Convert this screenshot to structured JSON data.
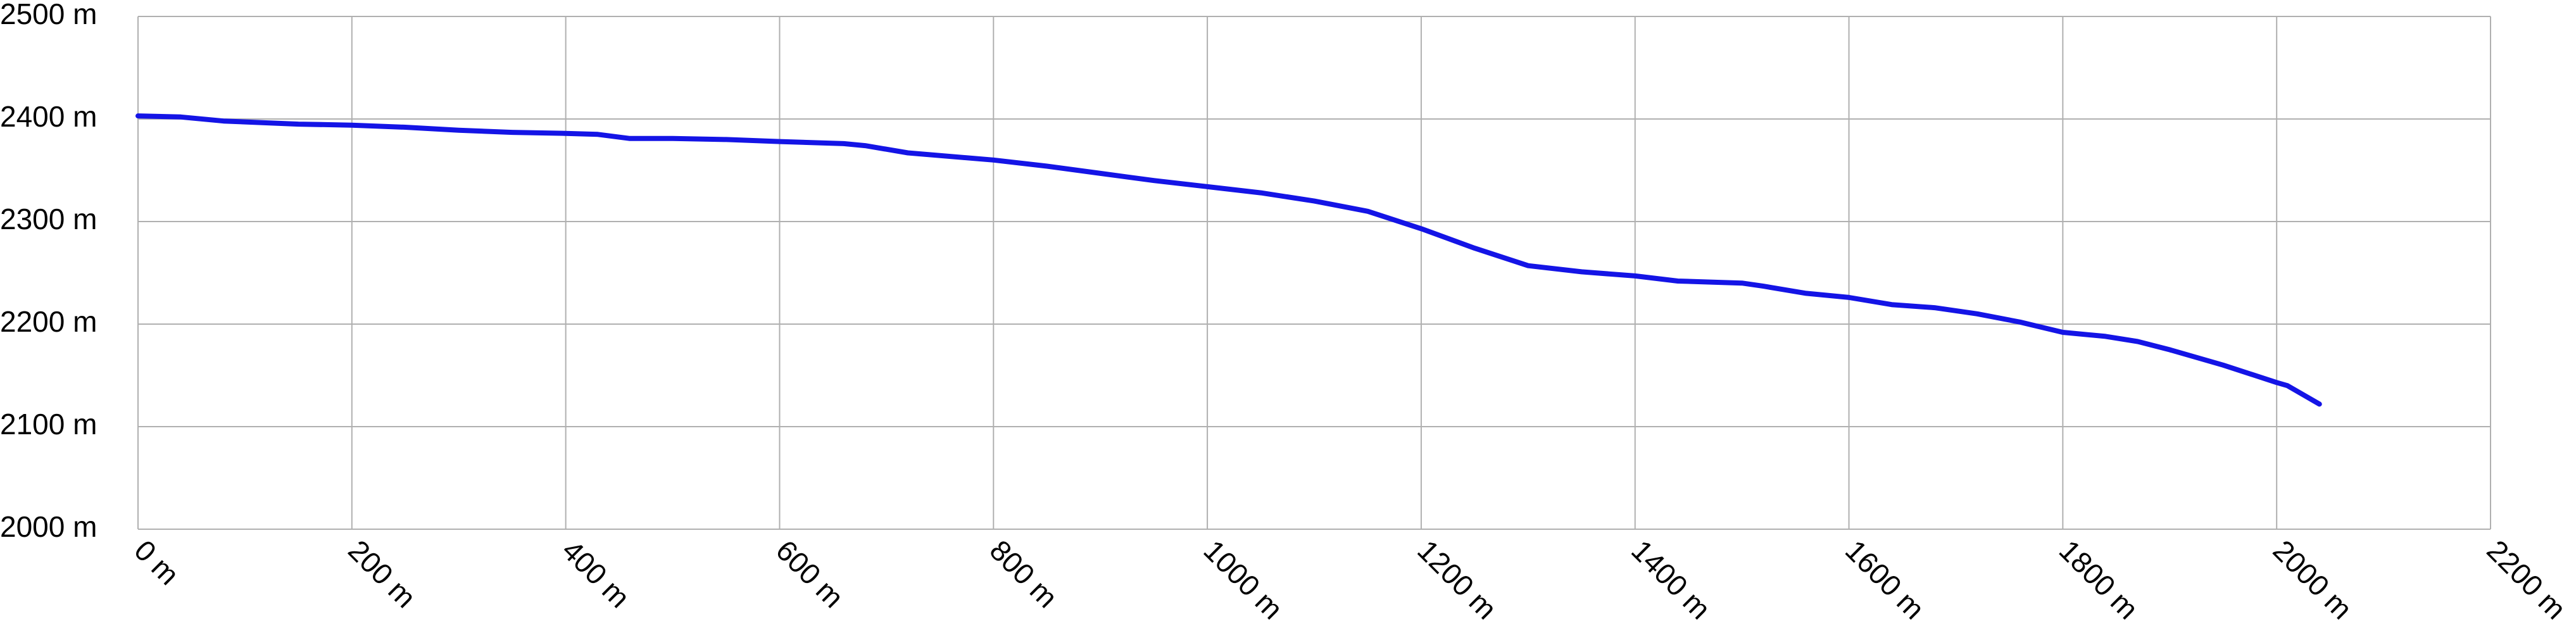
{
  "chart_data": {
    "type": "line",
    "x": [
      0,
      40,
      80,
      150,
      200,
      250,
      300,
      350,
      400,
      430,
      460,
      500,
      550,
      600,
      660,
      680,
      720,
      800,
      850,
      900,
      950,
      1000,
      1050,
      1100,
      1150,
      1200,
      1250,
      1300,
      1350,
      1400,
      1440,
      1500,
      1520,
      1560,
      1600,
      1640,
      1680,
      1720,
      1760,
      1800,
      1840,
      1870,
      1900,
      1950,
      2000,
      2010,
      2040
    ],
    "values": [
      2403,
      2402,
      2398,
      2395,
      2394,
      2392,
      2389,
      2387,
      2386,
      2385,
      2381,
      2381,
      2380,
      2378,
      2376,
      2374,
      2367,
      2360,
      2354,
      2347,
      2340,
      2334,
      2328,
      2320,
      2310,
      2293,
      2274,
      2257,
      2251,
      2247,
      2242,
      2240,
      2237,
      2230,
      2226,
      2219,
      2216,
      2210,
      2202,
      2192,
      2188,
      2183,
      2175,
      2160,
      2143,
      2140,
      2122
    ],
    "color": "#1414e6",
    "xlim": [
      0,
      2200
    ],
    "xticks": [
      {
        "value": 0,
        "label": "0 m"
      },
      {
        "value": 200,
        "label": "200 m"
      },
      {
        "value": 400,
        "label": "400 m"
      },
      {
        "value": 600,
        "label": "600 m"
      },
      {
        "value": 800,
        "label": "800 m"
      },
      {
        "value": 1000,
        "label": "1000 m"
      },
      {
        "value": 1200,
        "label": "1200 m"
      },
      {
        "value": 1400,
        "label": "1400 m"
      },
      {
        "value": 1600,
        "label": "1600 m"
      },
      {
        "value": 1800,
        "label": "1800 m"
      },
      {
        "value": 2000,
        "label": "2000 m"
      },
      {
        "value": 2200,
        "label": "2200 m"
      }
    ],
    "ylim": [
      2000,
      2500
    ],
    "yticks": [
      {
        "value": 2000,
        "label": "2000 m"
      },
      {
        "value": 2100,
        "label": "2100 m"
      },
      {
        "value": 2200,
        "label": "2200 m"
      },
      {
        "value": 2300,
        "label": "2300 m"
      },
      {
        "value": 2400,
        "label": "2400 m"
      },
      {
        "value": 2500,
        "label": "2500 m"
      }
    ],
    "grid": true
  }
}
